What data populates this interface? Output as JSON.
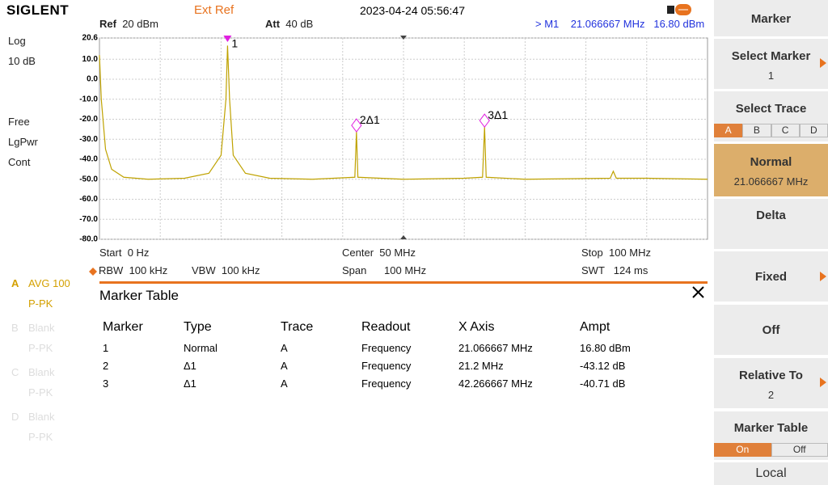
{
  "header": {
    "brand": "SIGLENT",
    "ref_source": "Ext Ref",
    "datetime": "2023-04-24 05:56:47"
  },
  "left_panel": {
    "scale_type": "Log",
    "scale_div": "10 dB",
    "trigger": "Free",
    "detector": "LgPwr",
    "sweep": "Cont",
    "traces": [
      {
        "id": "A",
        "mode": "AVG 100",
        "detector": "P-PK"
      },
      {
        "id": "B",
        "mode": "Blank",
        "detector": "P-PK"
      },
      {
        "id": "C",
        "mode": "Blank",
        "detector": "P-PK"
      },
      {
        "id": "D",
        "mode": "Blank",
        "detector": "P-PK"
      }
    ]
  },
  "chart_data": {
    "type": "line",
    "ref_label": "Ref",
    "ref_value": "20 dBm",
    "att_label": "Att",
    "att_value": "40 dB",
    "marker_readout": "> M1",
    "marker_freq": "21.066667 MHz",
    "marker_ampl": "16.80 dBm",
    "x": [
      0,
      0.3,
      1,
      2,
      4,
      8,
      14,
      18,
      20,
      20.8,
      21.066667,
      21.4,
      22,
      24,
      28,
      35,
      42,
      42.266667,
      42.5,
      50,
      60,
      63,
      63.333334,
      63.6,
      70,
      84,
      84.5,
      85,
      90,
      100
    ],
    "values": [
      12,
      -10,
      -35,
      -45,
      -49,
      -50,
      -49.5,
      -47,
      -38,
      -10,
      16.8,
      -10,
      -38,
      -47,
      -49.5,
      -50,
      -49,
      -26.3,
      -49,
      -50,
      -49.5,
      -49,
      -23.9,
      -49,
      -50,
      -49.5,
      -46,
      -49.5,
      -49.5,
      -50
    ],
    "color": "#bfa200",
    "xlim": [
      0,
      100
    ],
    "ylim": [
      -80,
      20.6
    ],
    "yticks": [
      {
        "value": 20.6,
        "label": "20.6"
      },
      {
        "value": 10,
        "label": "10.0"
      },
      {
        "value": 0,
        "label": "0.0"
      },
      {
        "value": -10,
        "label": "-10.0"
      },
      {
        "value": -20,
        "label": "-20.0"
      },
      {
        "value": -30,
        "label": "-30.0"
      },
      {
        "value": -40,
        "label": "-40.0"
      },
      {
        "value": -50,
        "label": "-50.0"
      },
      {
        "value": -60,
        "label": "-60.0"
      },
      {
        "value": -70,
        "label": "-70.0"
      },
      {
        "value": -80,
        "label": "-80.0"
      }
    ],
    "grid": true,
    "markers": [
      {
        "label": "1",
        "x": 21.066667,
        "y": 16.8
      },
      {
        "label": "2Δ1",
        "x": 42.266667,
        "y": -26.3
      },
      {
        "label": "3Δ1",
        "x": 63.333334,
        "y": -23.9
      }
    ],
    "start_label": "Start",
    "start_value": "0 Hz",
    "center_label": "Center",
    "center_value": "50 MHz",
    "stop_label": "Stop",
    "stop_value": "100 MHz",
    "rbw_label": "RBW",
    "rbw_value": "100 kHz",
    "vbw_label": "VBW",
    "vbw_value": "100 kHz",
    "span_label": "Span",
    "span_value": "100 MHz",
    "swt_label": "SWT",
    "swt_value": "124 ms"
  },
  "marker_table": {
    "title": "Marker Table",
    "columns": [
      "Marker",
      "Type",
      "Trace",
      "Readout",
      "X Axis",
      "Ampt"
    ],
    "rows": [
      [
        "1",
        "Normal",
        "A",
        "Frequency",
        "21.066667 MHz",
        "16.80 dBm"
      ],
      [
        "2",
        "Δ1",
        "A",
        "Frequency",
        "21.2 MHz",
        "-43.12 dB"
      ],
      [
        "3",
        "Δ1",
        "A",
        "Frequency",
        "42.266667 MHz",
        "-40.71 dB"
      ]
    ]
  },
  "menu": {
    "title": "Marker",
    "select_marker": "Select Marker",
    "select_marker_value": "1",
    "select_trace": "Select Trace",
    "trace_tabs": [
      "A",
      "B",
      "C",
      "D"
    ],
    "normal": "Normal",
    "normal_value": "21.066667 MHz",
    "delta": "Delta",
    "fixed": "Fixed",
    "off": "Off",
    "relative_to": "Relative To",
    "relative_to_value": "2",
    "marker_table": "Marker Table",
    "table_tabs": [
      "On",
      "Off"
    ],
    "local": "Local"
  }
}
